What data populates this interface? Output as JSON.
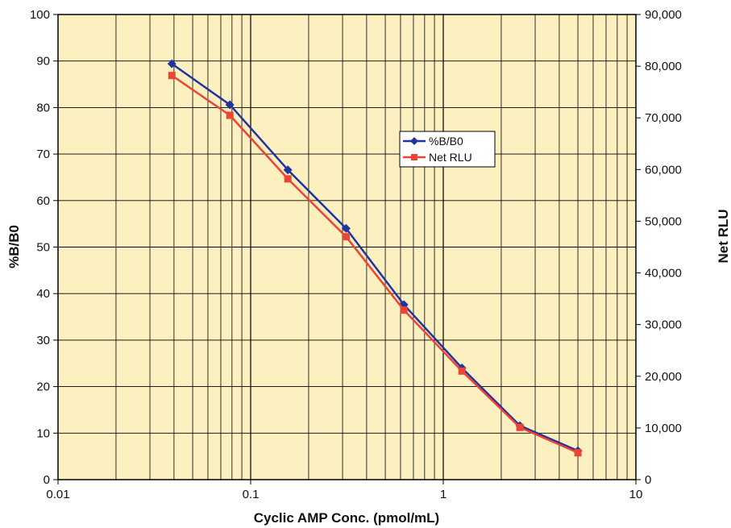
{
  "chart_data": {
    "type": "line",
    "title": "",
    "xlabel": "Cyclic AMP Conc. (pmol/mL)",
    "ylabel": "%B/B0",
    "y2label": "Net RLU",
    "x_scale": "log",
    "xlim": [
      0.01,
      10
    ],
    "ylim": [
      0,
      100
    ],
    "y2lim": [
      0,
      90000
    ],
    "grid": true,
    "legend_position": "center-right",
    "background_color": "#FCEFC0",
    "x_ticks": [
      0.01,
      0.1,
      1,
      10
    ],
    "x_tick_labels": [
      "0.01",
      "0.1",
      "1",
      "10"
    ],
    "y_ticks": [
      0,
      10,
      20,
      30,
      40,
      50,
      60,
      70,
      80,
      90,
      100
    ],
    "y_tick_labels": [
      "0",
      "10",
      "20",
      "30",
      "40",
      "50",
      "60",
      "70",
      "80",
      "90",
      "100"
    ],
    "y2_ticks": [
      0,
      10000,
      20000,
      30000,
      40000,
      50000,
      60000,
      70000,
      80000,
      90000
    ],
    "y2_tick_labels": [
      "0",
      "10,000",
      "20,000",
      "30,000",
      "40,000",
      "50,000",
      "60,000",
      "70,000",
      "80,000",
      "90,000"
    ],
    "x": [
      0.039,
      0.078,
      0.156,
      0.313,
      0.625,
      1.25,
      2.5,
      5.0
    ],
    "series": [
      {
        "name": "%B/B0",
        "axis": "left",
        "color": "#2233A0",
        "marker": "diamond",
        "values": [
          89.4,
          80.6,
          66.6,
          54.0,
          37.6,
          24.0,
          11.6,
          6.2
        ]
      },
      {
        "name": "Net RLU",
        "axis": "right",
        "color": "#EE4433",
        "marker": "square",
        "values": [
          78200,
          70500,
          58200,
          47000,
          32800,
          21000,
          10100,
          5200
        ]
      }
    ]
  }
}
